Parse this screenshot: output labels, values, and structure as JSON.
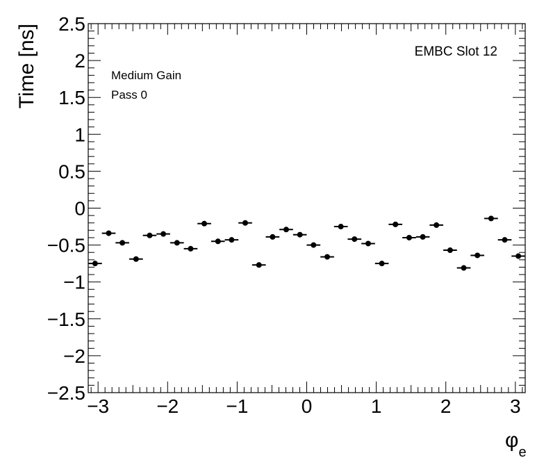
{
  "chart_data": {
    "type": "scatter",
    "title": "",
    "xlabel": "φ",
    "xlabel_subscript": "e",
    "ylabel": "Time [ns]",
    "xlim": [
      -3.1416,
      3.1416
    ],
    "ylim": [
      -2.5,
      2.5
    ],
    "grid": false,
    "legend": "none",
    "marker_color": "#000000",
    "annotations": {
      "gain": "Medium Gain",
      "pass": "Pass 0",
      "partition": "EMBC Slot 12"
    },
    "x_ticks": [
      -3,
      -2,
      -1,
      0,
      1,
      2,
      3
    ],
    "x_tick_labels": [
      "−3",
      "−2",
      "−1",
      "0",
      "1",
      "2",
      "3"
    ],
    "y_ticks": [
      -2.5,
      -2,
      -1.5,
      -1,
      -0.5,
      0,
      0.5,
      1,
      1.5,
      2,
      2.5
    ],
    "y_tick_labels": [
      "−2.5",
      "−2",
      "−1.5",
      "−1",
      "−0.5",
      "0",
      "0.5",
      "1",
      "1.5",
      "2",
      "2.5"
    ],
    "bin_half_width": 0.0982,
    "x": [
      -3.043,
      -2.847,
      -2.651,
      -2.454,
      -2.258,
      -2.062,
      -1.865,
      -1.669,
      -1.473,
      -1.276,
      -1.08,
      -0.884,
      -0.687,
      -0.491,
      -0.295,
      -0.098,
      0.098,
      0.295,
      0.491,
      0.687,
      0.884,
      1.08,
      1.276,
      1.473,
      1.669,
      1.865,
      2.062,
      2.258,
      2.454,
      2.651,
      2.847,
      3.043
    ],
    "y": [
      -0.75,
      -0.34,
      -0.47,
      -0.69,
      -0.37,
      -0.35,
      -0.47,
      -0.55,
      -0.21,
      -0.45,
      -0.43,
      -0.2,
      -0.77,
      -0.39,
      -0.29,
      -0.36,
      -0.5,
      -0.66,
      -0.25,
      -0.42,
      -0.48,
      -0.75,
      -0.22,
      -0.4,
      -0.39,
      -0.23,
      -0.57,
      -0.81,
      -0.64,
      -0.14,
      -0.43,
      -0.65
    ]
  }
}
